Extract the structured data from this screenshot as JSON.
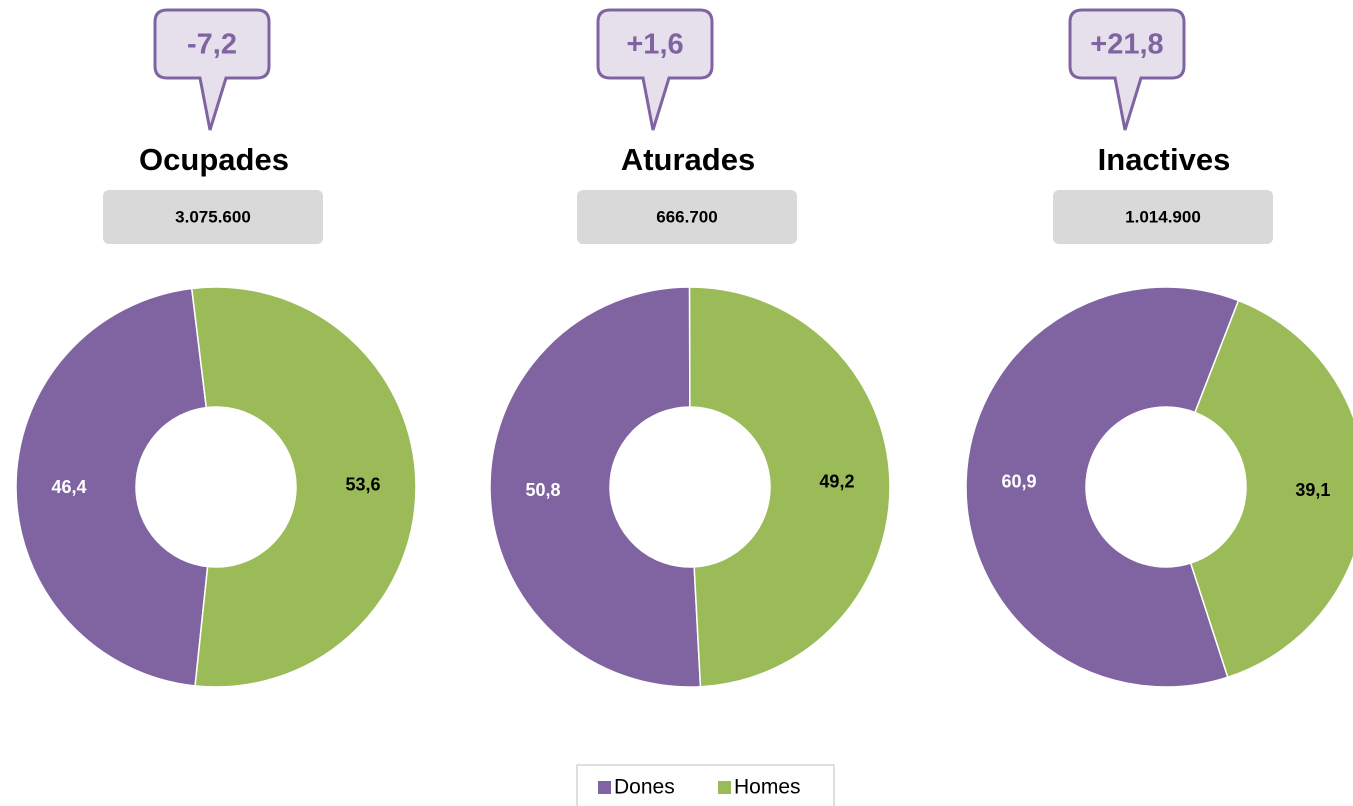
{
  "chart_data": [
    {
      "type": "pie",
      "title": "Ocupades",
      "annotations": [
        "-7,2",
        "3.075.600"
      ],
      "categories": [
        "Dones",
        "Homes"
      ],
      "values": [
        46.4,
        53.6
      ],
      "value_labels": [
        "46,4",
        "53,6"
      ],
      "colors": [
        "#8064a2",
        "#9bbb59"
      ],
      "donut": true,
      "legend": "bottom"
    },
    {
      "type": "pie",
      "title": "Aturades",
      "annotations": [
        "+1,6",
        "666.700"
      ],
      "categories": [
        "Dones",
        "Homes"
      ],
      "values": [
        50.8,
        49.2
      ],
      "value_labels": [
        "50,8",
        "49,2"
      ],
      "colors": [
        "#8064a2",
        "#9bbb59"
      ],
      "donut": true,
      "legend": "bottom"
    },
    {
      "type": "pie",
      "title": "Inactives",
      "annotations": [
        "+21,8",
        "1.014.900"
      ],
      "categories": [
        "Dones",
        "Homes"
      ],
      "values": [
        60.9,
        39.1
      ],
      "value_labels": [
        "60,9",
        "39,1"
      ],
      "colors": [
        "#8064a2",
        "#9bbb59"
      ],
      "donut": true,
      "legend": "bottom"
    }
  ]
}
